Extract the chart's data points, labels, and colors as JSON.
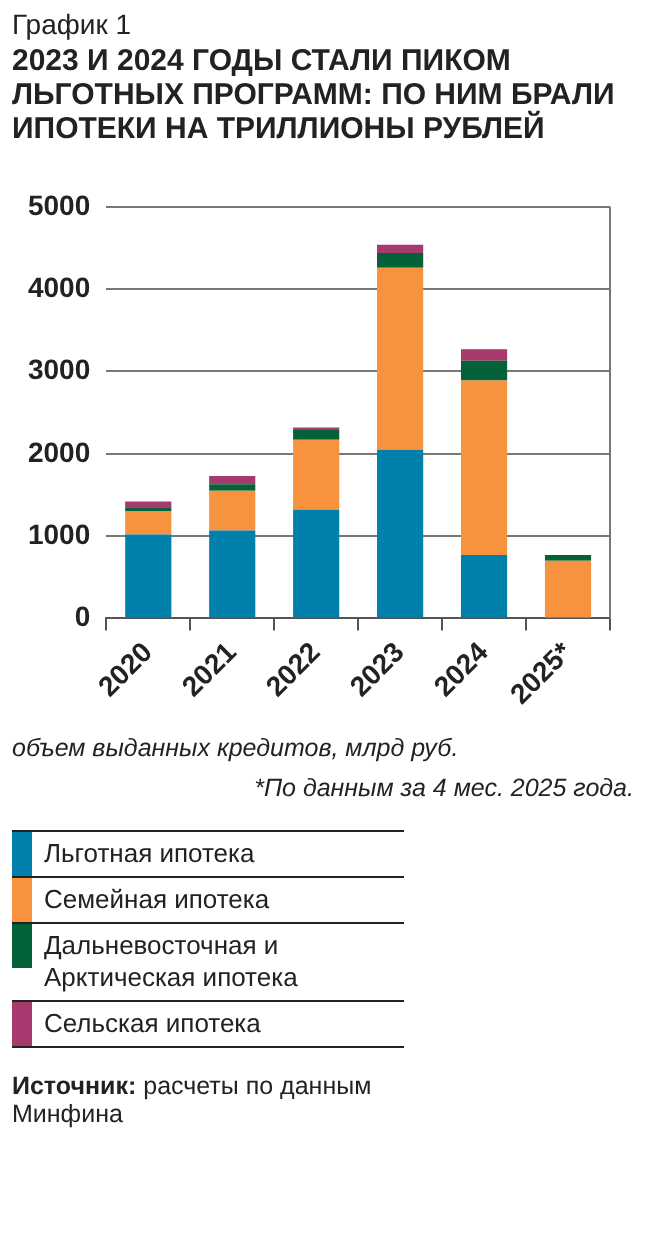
{
  "chart_data": {
    "type": "bar",
    "subtitle": "График 1",
    "title": "2023 И 2024 ГОДЫ СТАЛИ ПИКОМ ЛЬГОТНЫХ ПРОГРАММ: ПО НИМ БРАЛИ ИПОТЕКИ НА ТРИЛЛИОНЫ РУБЛЕЙ",
    "categories": [
      "2020",
      "2021",
      "2022",
      "2023",
      "2024",
      "2025*"
    ],
    "stacked": true,
    "series": [
      {
        "name": "Льготная ипотека",
        "color": "#0080aa",
        "values": [
          1020,
          1070,
          1320,
          2050,
          770,
          0
        ]
      },
      {
        "name": "Семейная ипотека",
        "color": "#f7923f",
        "values": [
          280,
          480,
          850,
          2210,
          2120,
          700
        ]
      },
      {
        "name": "Дальневосточная и Арктическая ипотека",
        "color": "#046238",
        "values": [
          50,
          80,
          120,
          180,
          240,
          70
        ]
      },
      {
        "name": "Сельская ипотека",
        "color": "#a63a6e",
        "values": [
          70,
          100,
          30,
          100,
          140,
          0
        ]
      }
    ],
    "ylim": [
      0,
      5000
    ],
    "yticks": [
      0,
      1000,
      2000,
      3000,
      4000,
      5000
    ],
    "grid": "y",
    "legend": "bottom",
    "annotations": [
      "объем выданных кредитов, млрд руб.",
      "*По данным за 4 мес. 2025 года.",
      "Источник: расчеты по данным Минфина"
    ]
  }
}
